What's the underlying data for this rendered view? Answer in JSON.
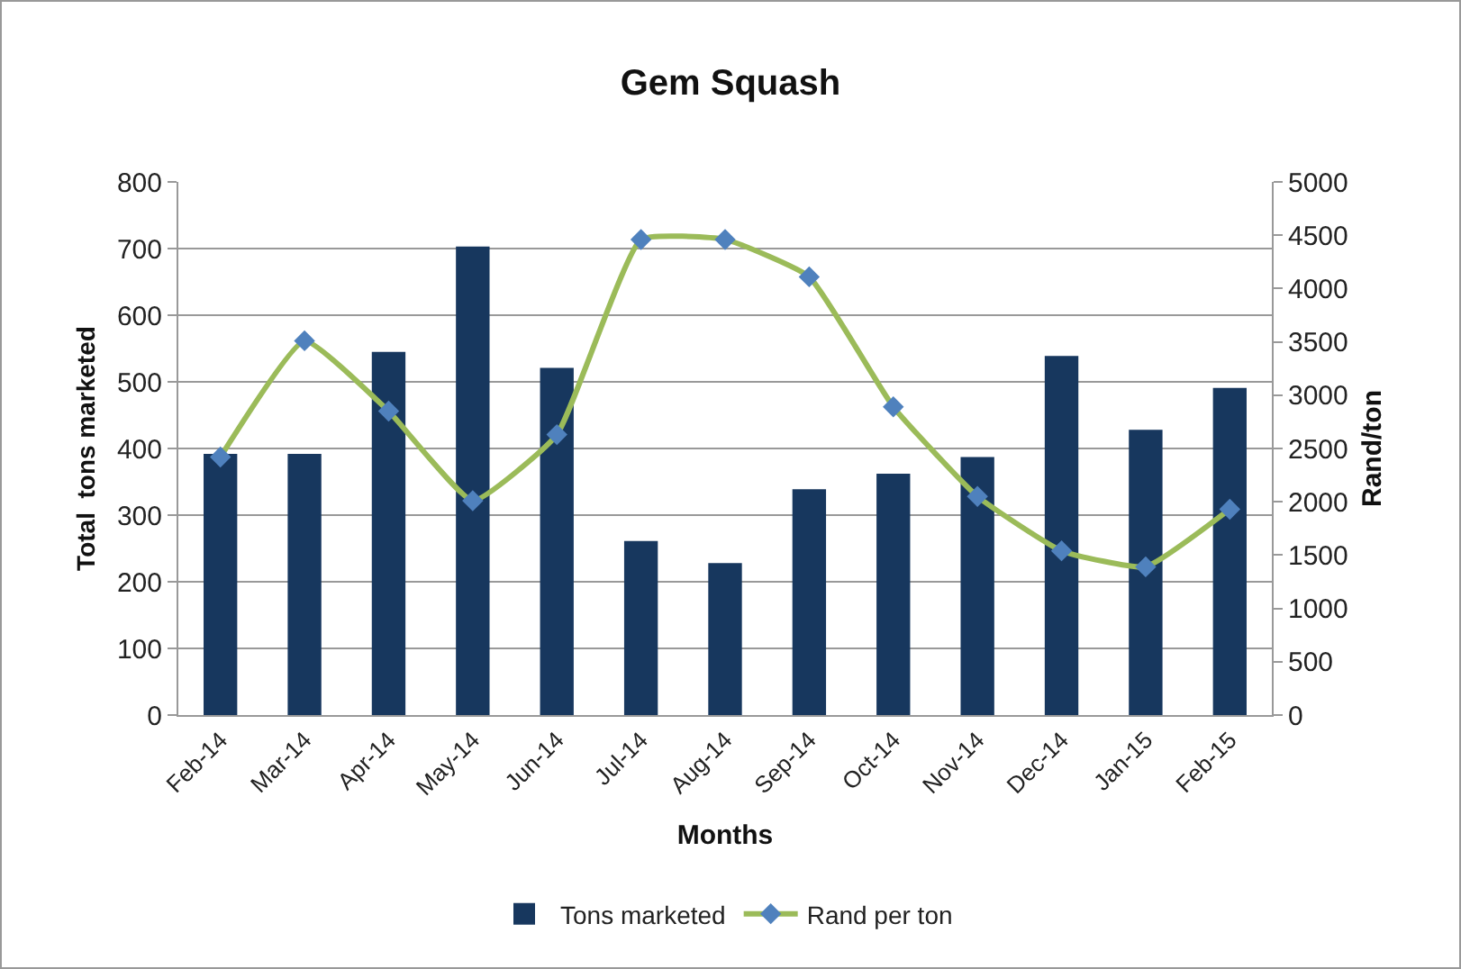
{
  "chart_data": {
    "type": "bar",
    "title": "Gem Squash",
    "xlabel": "Months",
    "ylabel": "Total  tons marketed",
    "y2label": "Rand/ton",
    "categories": [
      "Feb-14",
      "Mar-14",
      "Apr-14",
      "May-14",
      "Jun-14",
      "Jul-14",
      "Aug-14",
      "Sep-14",
      "Oct-14",
      "Nov-14",
      "Dec-14",
      "Jan-15",
      "Feb-15"
    ],
    "series": [
      {
        "name": "Tons marketed",
        "color": "#17375e",
        "values": [
          392,
          392,
          545,
          703,
          521,
          261,
          228,
          339,
          362,
          387,
          539,
          428,
          491
        ]
      },
      {
        "name": "Rand per ton",
        "type": "line",
        "axis": "y2",
        "color": "#9bbb59",
        "marker": "diamond",
        "values": [
          2420,
          3510,
          2850,
          2010,
          2630,
          4460,
          4460,
          4110,
          2890,
          2050,
          1540,
          1390,
          1930
        ]
      }
    ],
    "ylim": [
      0,
      800
    ],
    "yticks": [
      0,
      100,
      200,
      300,
      400,
      500,
      600,
      700,
      800
    ],
    "y2lim": [
      0,
      5000
    ],
    "y2ticks": [
      0,
      500,
      1000,
      1500,
      2000,
      2500,
      3000,
      3500,
      4000,
      4500,
      5000
    ],
    "grid": "y",
    "legend": "bottom"
  }
}
